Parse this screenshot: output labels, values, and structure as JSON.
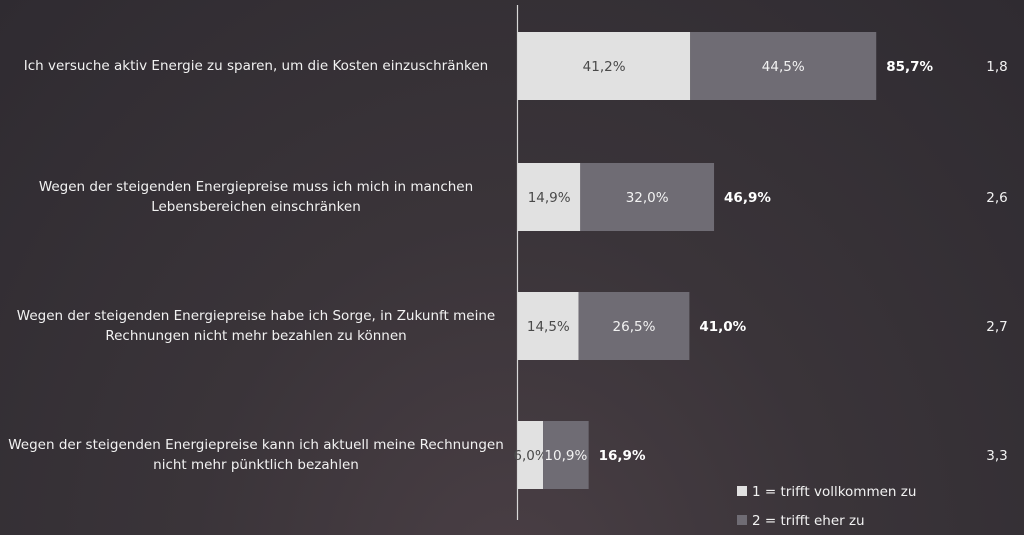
{
  "chart_data": {
    "type": "bar",
    "orientation": "horizontal",
    "stacked": true,
    "categories": [
      "Ich versuche aktiv Energie zu sparen, um die Kosten einzuschränken",
      "Wegen der steigenden Energiepreise muss ich mich in manchen Lebensbereichen einschränken",
      "Wegen der steigenden Energiepreise habe ich Sorge, in Zukunft meine Rechnungen nicht mehr bezahlen zu können",
      "Wegen der steigenden Energiepreise kann ich aktuell meine Rechnungen nicht mehr pünktlich bezahlen"
    ],
    "series": [
      {
        "name": "1 = trifft vollkommen zu",
        "color": "#e1e1e1",
        "label_color": "#4a4a4a",
        "values": [
          41.2,
          14.9,
          14.5,
          6.0
        ],
        "value_labels": [
          "41,2%",
          "14,9%",
          "14,5%",
          "6,0%"
        ]
      },
      {
        "name": "2 = trifft eher zu",
        "color": "#6f6c74",
        "label_color": "#f2f2f2",
        "values": [
          44.5,
          32.0,
          26.5,
          10.9
        ],
        "value_labels": [
          "44,5%",
          "32,0%",
          "26,5%",
          "10,9%"
        ]
      }
    ],
    "totals": {
      "values": [
        85.7,
        46.9,
        41.0,
        16.9
      ],
      "value_labels": [
        "85,7%",
        "46,9%",
        "41,0%",
        "16,9%"
      ]
    },
    "means": {
      "values": [
        1.8,
        2.6,
        2.7,
        3.3
      ],
      "value_labels": [
        "1,8",
        "2,6",
        "2,7",
        "3,3"
      ]
    },
    "legend": "bottom-right"
  }
}
